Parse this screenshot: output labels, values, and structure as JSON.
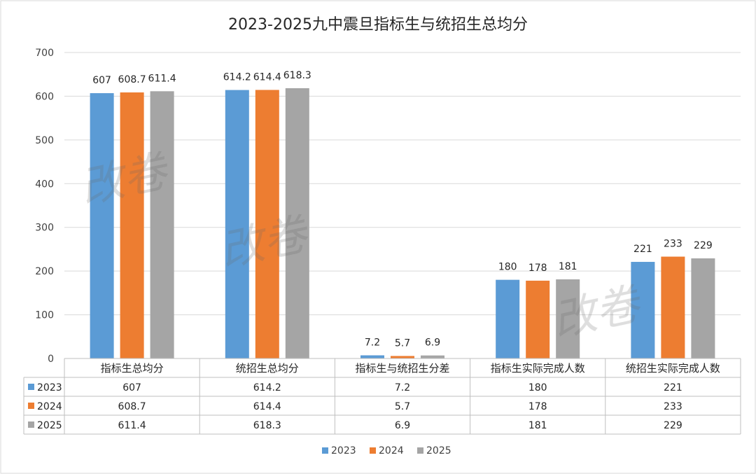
{
  "chart_data": {
    "type": "bar",
    "title": "2023-2025九中震旦指标生与统招生总均分",
    "categories": [
      "指标生总均分",
      "统招生总均分",
      "指标生与统招生分差",
      "指标生实际完成人数",
      "统招生实际完成人数"
    ],
    "series": [
      {
        "name": "2023",
        "color": "#5B9BD5",
        "values": [
          607,
          614.2,
          7.2,
          180,
          221
        ],
        "labels": [
          "607",
          "614.2",
          "7.2",
          "180",
          "221"
        ]
      },
      {
        "name": "2024",
        "color": "#ED7D31",
        "values": [
          608.7,
          614.4,
          5.7,
          178,
          233
        ],
        "labels": [
          "608.7",
          "614.4",
          "5.7",
          "178",
          "233"
        ]
      },
      {
        "name": "2025",
        "color": "#A5A5A5",
        "values": [
          611.4,
          618.3,
          6.9,
          181,
          229
        ],
        "labels": [
          "611.4",
          "618.3",
          "6.9",
          "181",
          "229"
        ]
      }
    ],
    "ylim": [
      0,
      700
    ],
    "yticks": [
      0,
      100,
      200,
      300,
      400,
      500,
      600,
      700
    ],
    "grid": true,
    "legend": "bottom",
    "data_table": true
  },
  "watermark": "改卷"
}
